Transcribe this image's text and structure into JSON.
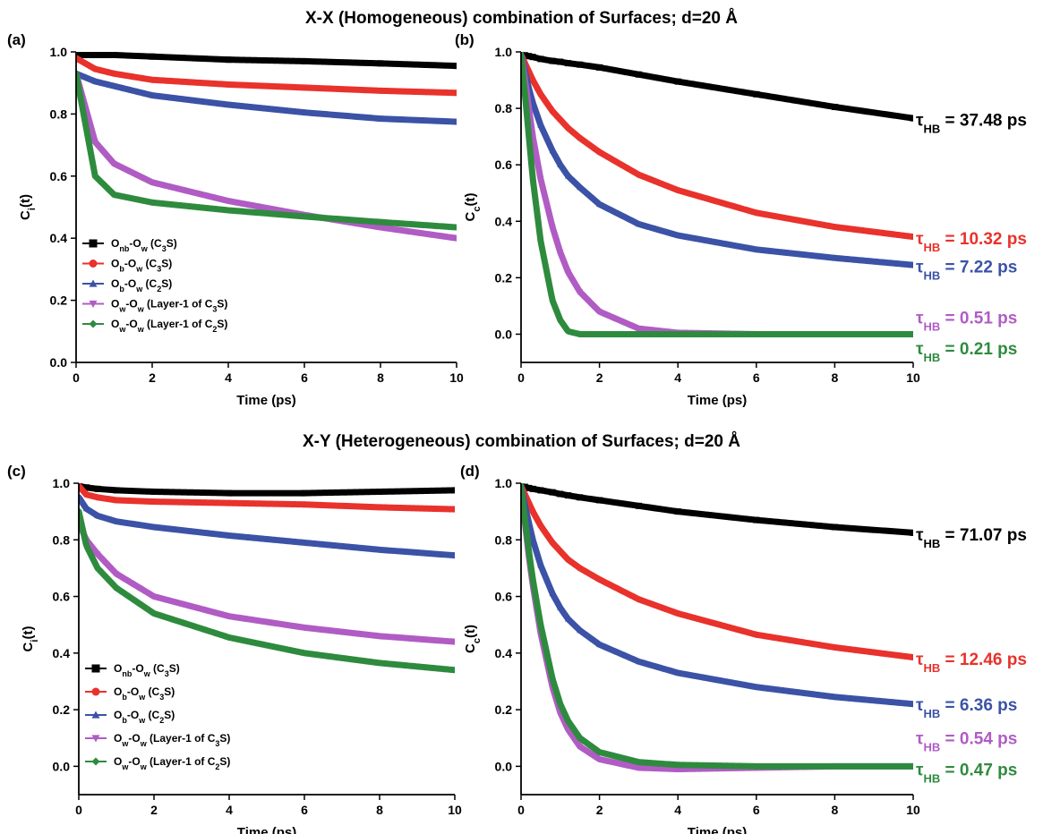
{
  "titles": {
    "top": "X-X (Homogeneous) combination of Surfaces; d=20 Å",
    "bottom": "X-Y (Heterogeneous) combination of Surfaces; d=20 Å"
  },
  "colors": {
    "onb_ow_c3s": "#000000",
    "ob_ow_c3s": "#e8322b",
    "ob_ow_c2s": "#3b52a6",
    "ow_ow_c3s": "#b05cc4",
    "ow_ow_c2s": "#2e8b3e"
  },
  "legend": [
    {
      "key": "onb_ow_c3s",
      "marker": "square",
      "main": "O",
      "s1": "nb",
      "mid": "-O",
      "s2": "w",
      "tail": " (C",
      "s3": "3",
      "end": "S)"
    },
    {
      "key": "ob_ow_c3s",
      "marker": "circle",
      "main": "O",
      "s1": "b",
      "mid": "-O",
      "s2": "w",
      "tail": " (C",
      "s3": "3",
      "end": "S)"
    },
    {
      "key": "ob_ow_c2s",
      "marker": "triangle-up",
      "main": "O",
      "s1": "b",
      "mid": "-O",
      "s2": "w",
      "tail": " (C",
      "s3": "2",
      "end": "S)"
    },
    {
      "key": "ow_ow_c3s",
      "marker": "triangle-down",
      "main": "O",
      "s1": "w",
      "mid": "-O",
      "s2": "w",
      "tail": " (Layer-1 of C",
      "s3": "3",
      "end": "S)"
    },
    {
      "key": "ow_ow_c2s",
      "marker": "diamond",
      "main": "O",
      "s1": "w",
      "mid": "-O",
      "s2": "w",
      "tail": " (Layer-1 of C",
      "s3": "2",
      "end": "S)"
    }
  ],
  "chart_data": [
    {
      "panel": "(a)",
      "type": "line",
      "xlabel": "Time (ps)",
      "ylabel_main": "C",
      "ylabel_sub": "i",
      "ylabel_end": "(t)",
      "xlim": [
        0,
        10
      ],
      "ylim": [
        0,
        1.0
      ],
      "xticks": [
        0,
        2,
        4,
        6,
        8,
        10
      ],
      "yticks": [
        0.0,
        0.2,
        0.4,
        0.6,
        0.8,
        1.0
      ],
      "legend": true,
      "x": [
        0,
        0.5,
        1,
        2,
        4,
        6,
        8,
        10
      ],
      "series": [
        {
          "key": "onb_ow_c3s",
          "values": [
            0.99,
            0.99,
            0.99,
            0.985,
            0.975,
            0.97,
            0.963,
            0.955
          ]
        },
        {
          "key": "ob_ow_c3s",
          "values": [
            0.98,
            0.945,
            0.93,
            0.91,
            0.895,
            0.885,
            0.875,
            0.868
          ]
        },
        {
          "key": "ob_ow_c2s",
          "values": [
            0.93,
            0.905,
            0.89,
            0.86,
            0.83,
            0.805,
            0.785,
            0.775
          ]
        },
        {
          "key": "ow_ow_c3s",
          "values": [
            0.93,
            0.71,
            0.64,
            0.58,
            0.52,
            0.475,
            0.435,
            0.4
          ]
        },
        {
          "key": "ow_ow_c2s",
          "values": [
            0.93,
            0.6,
            0.54,
            0.515,
            0.49,
            0.47,
            0.452,
            0.435
          ]
        }
      ]
    },
    {
      "panel": "(b)",
      "type": "line",
      "xlabel": "Time (ps)",
      "ylabel_main": "C",
      "ylabel_sub": "c",
      "ylabel_end": "(t)",
      "xlim": [
        0,
        10
      ],
      "ylim": [
        -0.1,
        1.0
      ],
      "xticks": [
        0,
        2,
        4,
        6,
        8,
        10
      ],
      "yticks": [
        0.0,
        0.2,
        0.4,
        0.6,
        0.8,
        1.0
      ],
      "legend": false,
      "x": [
        0,
        0.1,
        0.2,
        0.3,
        0.5,
        0.8,
        1,
        1.2,
        1.5,
        2,
        3,
        4,
        6,
        8,
        10
      ],
      "series": [
        {
          "key": "onb_ow_c3s",
          "values": [
            0.99,
            0.988,
            0.985,
            0.982,
            0.975,
            0.968,
            0.965,
            0.96,
            0.955,
            0.945,
            0.92,
            0.895,
            0.85,
            0.805,
            0.765
          ]
        },
        {
          "key": "ob_ow_c3s",
          "values": [
            0.99,
            0.96,
            0.93,
            0.9,
            0.85,
            0.79,
            0.76,
            0.73,
            0.695,
            0.645,
            0.565,
            0.51,
            0.43,
            0.38,
            0.345
          ]
        },
        {
          "key": "ob_ow_c2s",
          "values": [
            0.99,
            0.93,
            0.87,
            0.82,
            0.74,
            0.65,
            0.6,
            0.56,
            0.52,
            0.46,
            0.39,
            0.35,
            0.3,
            0.27,
            0.245
          ]
        },
        {
          "key": "ow_ow_c3s",
          "values": [
            0.99,
            0.9,
            0.8,
            0.7,
            0.55,
            0.38,
            0.29,
            0.22,
            0.15,
            0.08,
            0.02,
            0.005,
            0.0,
            0.0,
            0.0
          ]
        },
        {
          "key": "ow_ow_c2s",
          "values": [
            0.99,
            0.85,
            0.7,
            0.55,
            0.33,
            0.12,
            0.05,
            0.01,
            0.0,
            0.0,
            0.0,
            0.0,
            0.0,
            0.0,
            0.0
          ]
        }
      ],
      "annotations": [
        {
          "key": "onb_ow_c3s",
          "prefix": "τ",
          "sub": "HB",
          "text": " = 37.48 ps",
          "y": 0.76
        },
        {
          "key": "ob_ow_c3s",
          "prefix": "τ",
          "sub": "HB",
          "text": " = 10.32 ps",
          "y": 0.34
        },
        {
          "key": "ob_ow_c2s",
          "prefix": "τ",
          "sub": "HB",
          "text": " = 7.22 ps",
          "y": 0.24
        },
        {
          "key": "ow_ow_c3s",
          "prefix": "τ",
          "sub": "HB",
          "text": " = 0.51 ps",
          "y": 0.06
        },
        {
          "key": "ow_ow_c2s",
          "prefix": "τ",
          "sub": "HB",
          "text": " = 0.21 ps",
          "y": -0.05
        }
      ]
    },
    {
      "panel": "(c)",
      "type": "line",
      "xlabel": "Time (ps)",
      "ylabel_main": "C",
      "ylabel_sub": "i",
      "ylabel_end": "(t)",
      "xlim": [
        0,
        10
      ],
      "ylim": [
        -0.1,
        1.0
      ],
      "xticks": [
        0,
        2,
        4,
        6,
        8,
        10
      ],
      "yticks": [
        0.0,
        0.2,
        0.4,
        0.6,
        0.8,
        1.0
      ],
      "legend": true,
      "x": [
        0,
        0.2,
        0.5,
        1,
        2,
        4,
        6,
        8,
        10
      ],
      "series": [
        {
          "key": "onb_ow_c3s",
          "values": [
            0.99,
            0.985,
            0.98,
            0.975,
            0.97,
            0.965,
            0.965,
            0.97,
            0.975
          ]
        },
        {
          "key": "ob_ow_c3s",
          "values": [
            0.99,
            0.96,
            0.95,
            0.94,
            0.935,
            0.93,
            0.925,
            0.915,
            0.908
          ]
        },
        {
          "key": "ob_ow_c2s",
          "values": [
            0.95,
            0.91,
            0.885,
            0.865,
            0.845,
            0.815,
            0.79,
            0.765,
            0.745
          ]
        },
        {
          "key": "ow_ow_c3s",
          "values": [
            0.86,
            0.8,
            0.75,
            0.68,
            0.6,
            0.53,
            0.49,
            0.46,
            0.44
          ]
        },
        {
          "key": "ow_ow_c2s",
          "values": [
            0.9,
            0.78,
            0.7,
            0.63,
            0.54,
            0.455,
            0.4,
            0.365,
            0.34
          ]
        }
      ]
    },
    {
      "panel": "(d)",
      "type": "line",
      "xlabel": "Time (ps)",
      "ylabel_main": "C",
      "ylabel_sub": "c",
      "ylabel_end": "(t)",
      "xlim": [
        0,
        10
      ],
      "ylim": [
        -0.1,
        1.0
      ],
      "xticks": [
        0,
        2,
        4,
        6,
        8,
        10
      ],
      "yticks": [
        0.0,
        0.2,
        0.4,
        0.6,
        0.8,
        1.0
      ],
      "legend": false,
      "x": [
        0,
        0.1,
        0.2,
        0.3,
        0.5,
        0.8,
        1,
        1.2,
        1.5,
        2,
        3,
        4,
        6,
        8,
        10
      ],
      "series": [
        {
          "key": "onb_ow_c3s",
          "values": [
            0.99,
            0.987,
            0.983,
            0.98,
            0.975,
            0.968,
            0.962,
            0.957,
            0.95,
            0.94,
            0.92,
            0.9,
            0.87,
            0.845,
            0.825
          ]
        },
        {
          "key": "ob_ow_c3s",
          "values": [
            0.99,
            0.96,
            0.93,
            0.9,
            0.85,
            0.79,
            0.76,
            0.73,
            0.7,
            0.66,
            0.59,
            0.54,
            0.465,
            0.42,
            0.385
          ]
        },
        {
          "key": "ob_ow_c2s",
          "values": [
            0.99,
            0.92,
            0.86,
            0.8,
            0.71,
            0.61,
            0.56,
            0.52,
            0.48,
            0.43,
            0.37,
            0.33,
            0.28,
            0.245,
            0.22
          ]
        },
        {
          "key": "ow_ow_c3s",
          "values": [
            0.99,
            0.86,
            0.74,
            0.64,
            0.47,
            0.28,
            0.19,
            0.13,
            0.07,
            0.025,
            -0.005,
            -0.01,
            -0.005,
            0.0,
            0.0
          ]
        },
        {
          "key": "ow_ow_c2s",
          "values": [
            0.99,
            0.87,
            0.76,
            0.66,
            0.5,
            0.31,
            0.22,
            0.16,
            0.1,
            0.05,
            0.015,
            0.005,
            0.0,
            0.0,
            0.0
          ]
        }
      ],
      "annotations": [
        {
          "key": "onb_ow_c3s",
          "prefix": "τ",
          "sub": "HB",
          "text": " = 71.07 ps",
          "y": 0.82
        },
        {
          "key": "ob_ow_c3s",
          "prefix": "τ",
          "sub": "HB",
          "text": " = 12.46 ps",
          "y": 0.38
        },
        {
          "key": "ob_ow_c2s",
          "prefix": "τ",
          "sub": "HB",
          "text": " = 6.36 ps",
          "y": 0.22
        },
        {
          "key": "ow_ow_c3s",
          "prefix": "τ",
          "sub": "HB",
          "text": " = 0.54 ps",
          "y": 0.1
        },
        {
          "key": "ow_ow_c2s",
          "prefix": "τ",
          "sub": "HB",
          "text": " = 0.47 ps",
          "y": -0.01
        }
      ]
    }
  ]
}
